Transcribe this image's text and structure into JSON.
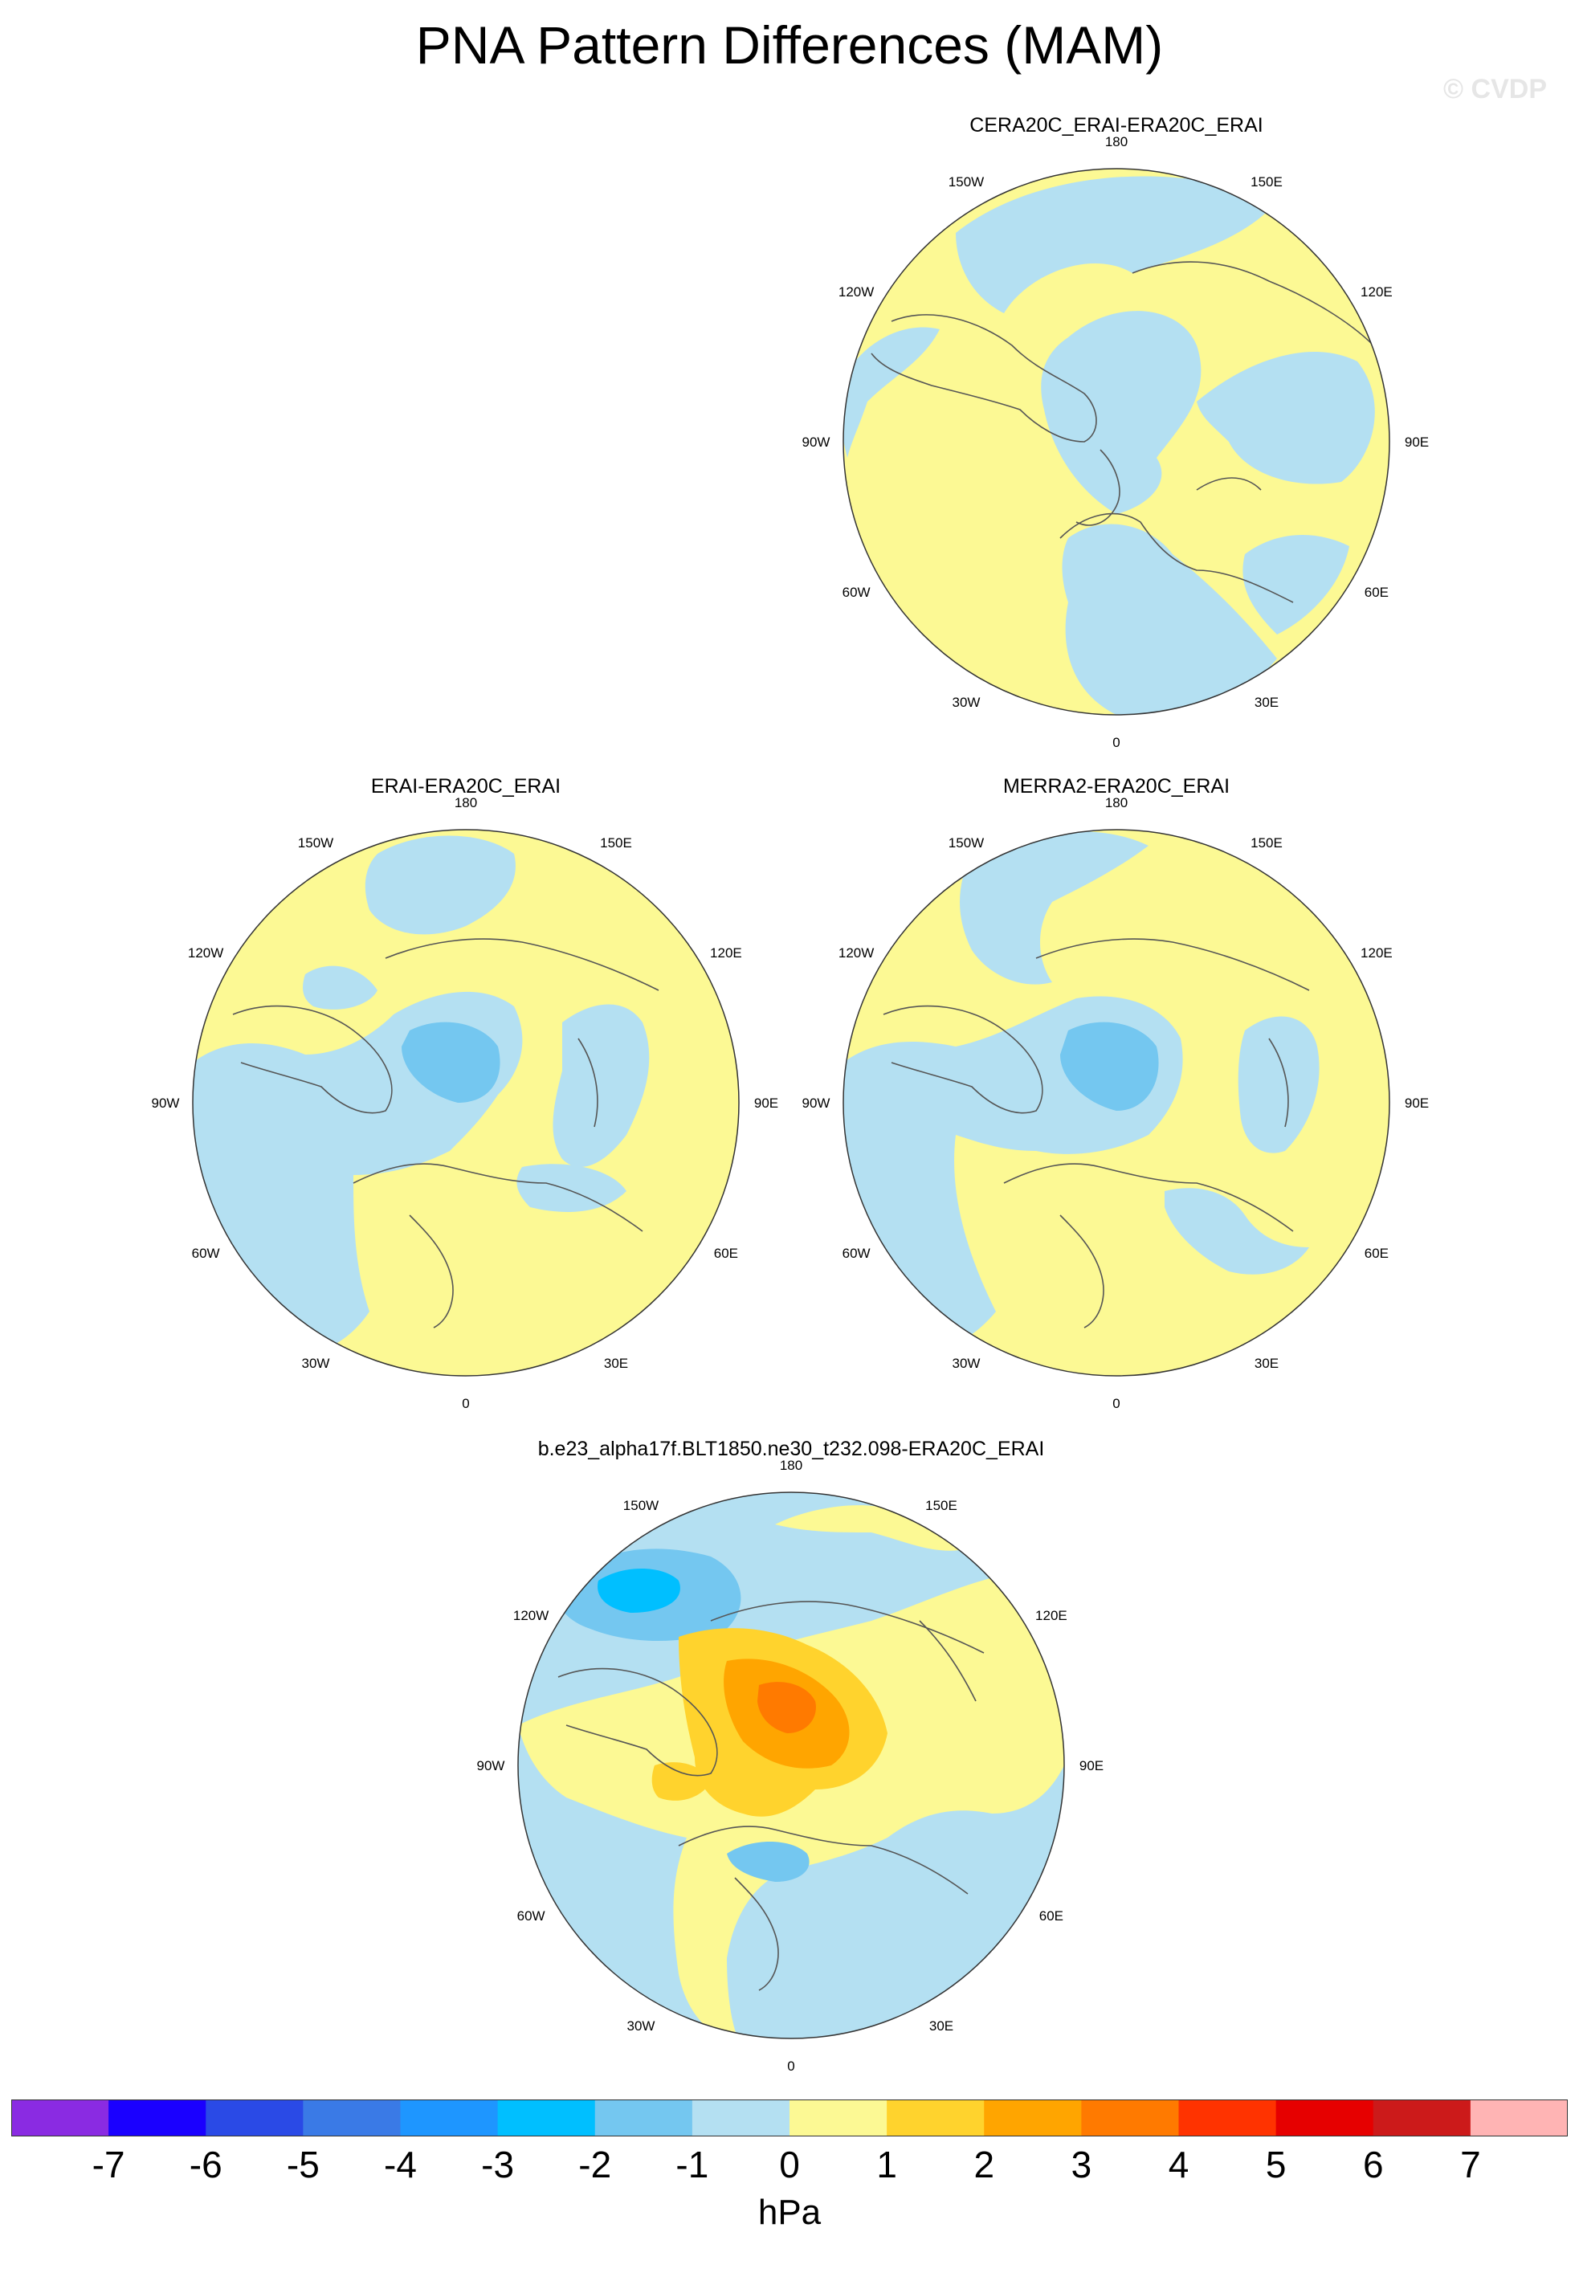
{
  "title": "PNA Pattern Differences (MAM)",
  "credit": "© CVDP",
  "longitude_labels": [
    "180",
    "150E",
    "120E",
    "90E",
    "60E",
    "30E",
    "0",
    "30W",
    "60W",
    "90W",
    "120W",
    "150W"
  ],
  "panels": [
    {
      "id": "cera20c",
      "title": "CERA20C_ERAI-ERA20C_ERAI"
    },
    {
      "id": "erai",
      "title": "ERAI-ERA20C_ERAI"
    },
    {
      "id": "merra2",
      "title": "MERRA2-ERA20C_ERAI"
    },
    {
      "id": "model",
      "title": "b.e23_alpha17f.BLT1850.ne30_t232.098-ERA20C_ERAI"
    }
  ],
  "colorbar": {
    "colors": [
      "#8a2be2",
      "#1a00ff",
      "#2a4ae6",
      "#3a7ae6",
      "#1e96ff",
      "#00bfff",
      "#74c7f0",
      "#b4e0f2",
      "#fcf994",
      "#ffd32d",
      "#ffa500",
      "#ff7a00",
      "#ff3300",
      "#e60000",
      "#cc1a1a",
      "#ffb4b4"
    ],
    "labels": [
      "-7",
      "-6",
      "-5",
      "-4",
      "-3",
      "-2",
      "-1",
      "0",
      "1",
      "2",
      "3",
      "4",
      "5",
      "6",
      "7"
    ],
    "units": "hPa"
  }
}
